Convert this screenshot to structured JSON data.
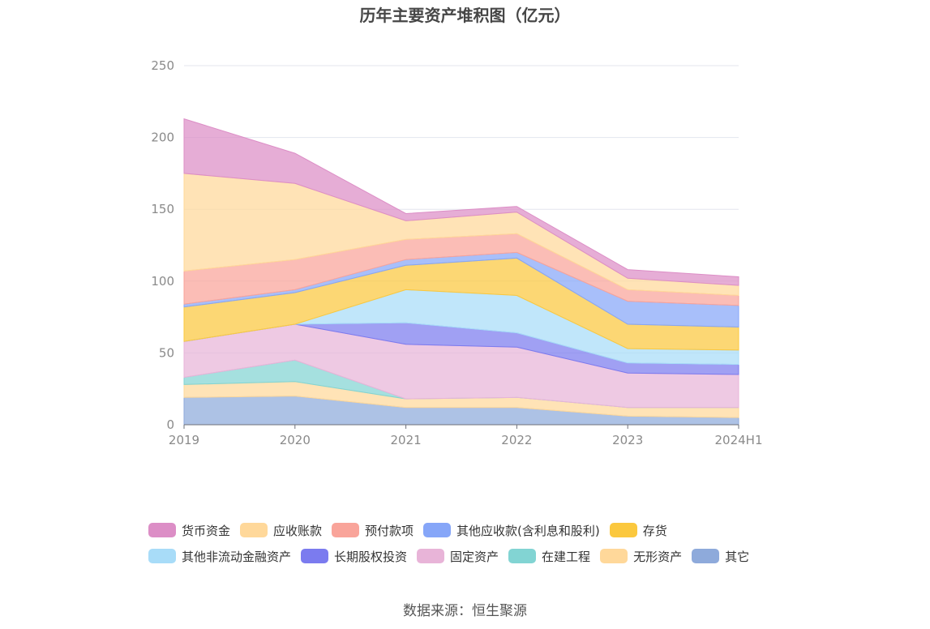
{
  "chart_data": {
    "type": "area",
    "title": "历年主要资产堆积图（亿元）",
    "source": "数据来源：恒生聚源",
    "x": [
      "2019",
      "2020",
      "2021",
      "2022",
      "2023",
      "2024H1"
    ],
    "ylim": [
      0,
      250
    ],
    "yticks": [
      "0",
      "50",
      "100",
      "150",
      "200",
      "250"
    ],
    "grid": true,
    "stacked": true,
    "legend_position": "bottom",
    "series": [
      {
        "name": "其它",
        "color": "#8eaadb",
        "values": [
          19,
          20,
          12,
          12,
          6,
          5
        ]
      },
      {
        "name": "无形资产",
        "color": "#ffd89a",
        "values": [
          9,
          10,
          6,
          7,
          6,
          7
        ]
      },
      {
        "name": "在建工程",
        "color": "#82d4d3",
        "values": [
          5,
          15,
          0,
          0,
          0,
          0
        ]
      },
      {
        "name": "固定资产",
        "color": "#e8b4d8",
        "values": [
          25,
          25,
          38,
          35,
          24,
          23
        ]
      },
      {
        "name": "长期股权投资",
        "color": "#7b7bef",
        "values": [
          0,
          0,
          15,
          10,
          7,
          7
        ]
      },
      {
        "name": "其他非流动金融资产",
        "color": "#a8dcf8",
        "values": [
          0,
          0,
          23,
          26,
          10,
          10
        ]
      },
      {
        "name": "存货",
        "color": "#fbc83e",
        "values": [
          24,
          22,
          17,
          26,
          17,
          16
        ]
      },
      {
        "name": "其他应收款(含利息和股利)",
        "color": "#86a6f8",
        "values": [
          2,
          2,
          4,
          4,
          16,
          15
        ]
      },
      {
        "name": "预付款项",
        "color": "#f9a49a",
        "values": [
          23,
          21,
          14,
          13,
          8,
          7
        ]
      },
      {
        "name": "应收账款",
        "color": "#ffd89a",
        "values": [
          68,
          53,
          13,
          15,
          8,
          7
        ]
      },
      {
        "name": "货币资金",
        "color": "#dc8ec6",
        "values": [
          38,
          21,
          5,
          4,
          6,
          6
        ]
      }
    ]
  }
}
